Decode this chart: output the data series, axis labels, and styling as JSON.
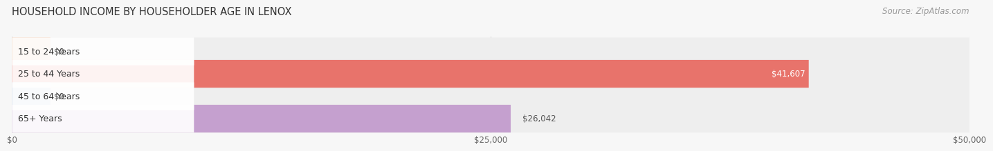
{
  "title": "HOUSEHOLD INCOME BY HOUSEHOLDER AGE IN LENOX",
  "source": "Source: ZipAtlas.com",
  "categories": [
    "15 to 24 Years",
    "25 to 44 Years",
    "45 to 64 Years",
    "65+ Years"
  ],
  "values": [
    0,
    41607,
    0,
    26042
  ],
  "bar_colors": [
    "#f2bc96",
    "#e8736b",
    "#aac5e2",
    "#c5a0cf"
  ],
  "xlim": [
    0,
    50000
  ],
  "xticks": [
    0,
    25000,
    50000
  ],
  "xtick_labels": [
    "$0",
    "$25,000",
    "$50,000"
  ],
  "value_labels": [
    "$0",
    "$41,607",
    "$0",
    "$26,042"
  ],
  "value_inside": [
    false,
    true,
    false,
    false
  ],
  "bar_height": 0.62,
  "track_color": "#eeeeee",
  "background_color": "#f7f7f7",
  "title_fontsize": 10.5,
  "source_fontsize": 8.5,
  "label_fontsize": 9,
  "value_fontsize": 8.5,
  "tick_fontsize": 8.5,
  "grid_color": "#d8d8d8"
}
